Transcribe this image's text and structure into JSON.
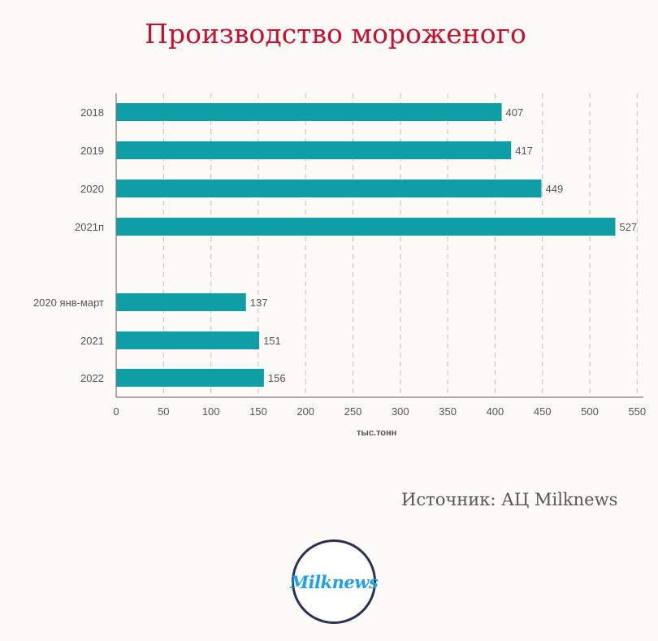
{
  "title": "Производство мороженого",
  "source": "Источник: АЦ Milknews",
  "logo_text": "Milknews",
  "chart_data": {
    "type": "bar",
    "orientation": "horizontal",
    "categories": [
      "2018",
      "2019",
      "2020",
      "2021п",
      "2020 янв-март",
      "2021",
      "2022"
    ],
    "values": [
      407,
      417,
      449,
      527,
      137,
      151,
      156
    ],
    "groups": [
      {
        "categories": [
          "2018",
          "2019",
          "2020",
          "2021п"
        ],
        "values": [
          407,
          417,
          449,
          527
        ]
      },
      {
        "categories": [
          "2020 янв-март",
          "2021",
          "2022"
        ],
        "values": [
          137,
          151,
          156
        ]
      }
    ],
    "xlabel": "тыс.тонн",
    "ylabel": "",
    "xlim": [
      0,
      550
    ],
    "xticks": [
      0,
      50,
      100,
      150,
      200,
      250,
      300,
      350,
      400,
      450,
      500,
      550
    ],
    "grid": "vertical-dashed",
    "bar_color": "#0f9ea5"
  },
  "colors": {
    "title": "#c8102e",
    "bar": "#0f9ea5",
    "grid": "#c8c8c8",
    "text": "#555555",
    "logo_ring": "#2b3153",
    "logo_text": "#1ea1e6"
  }
}
